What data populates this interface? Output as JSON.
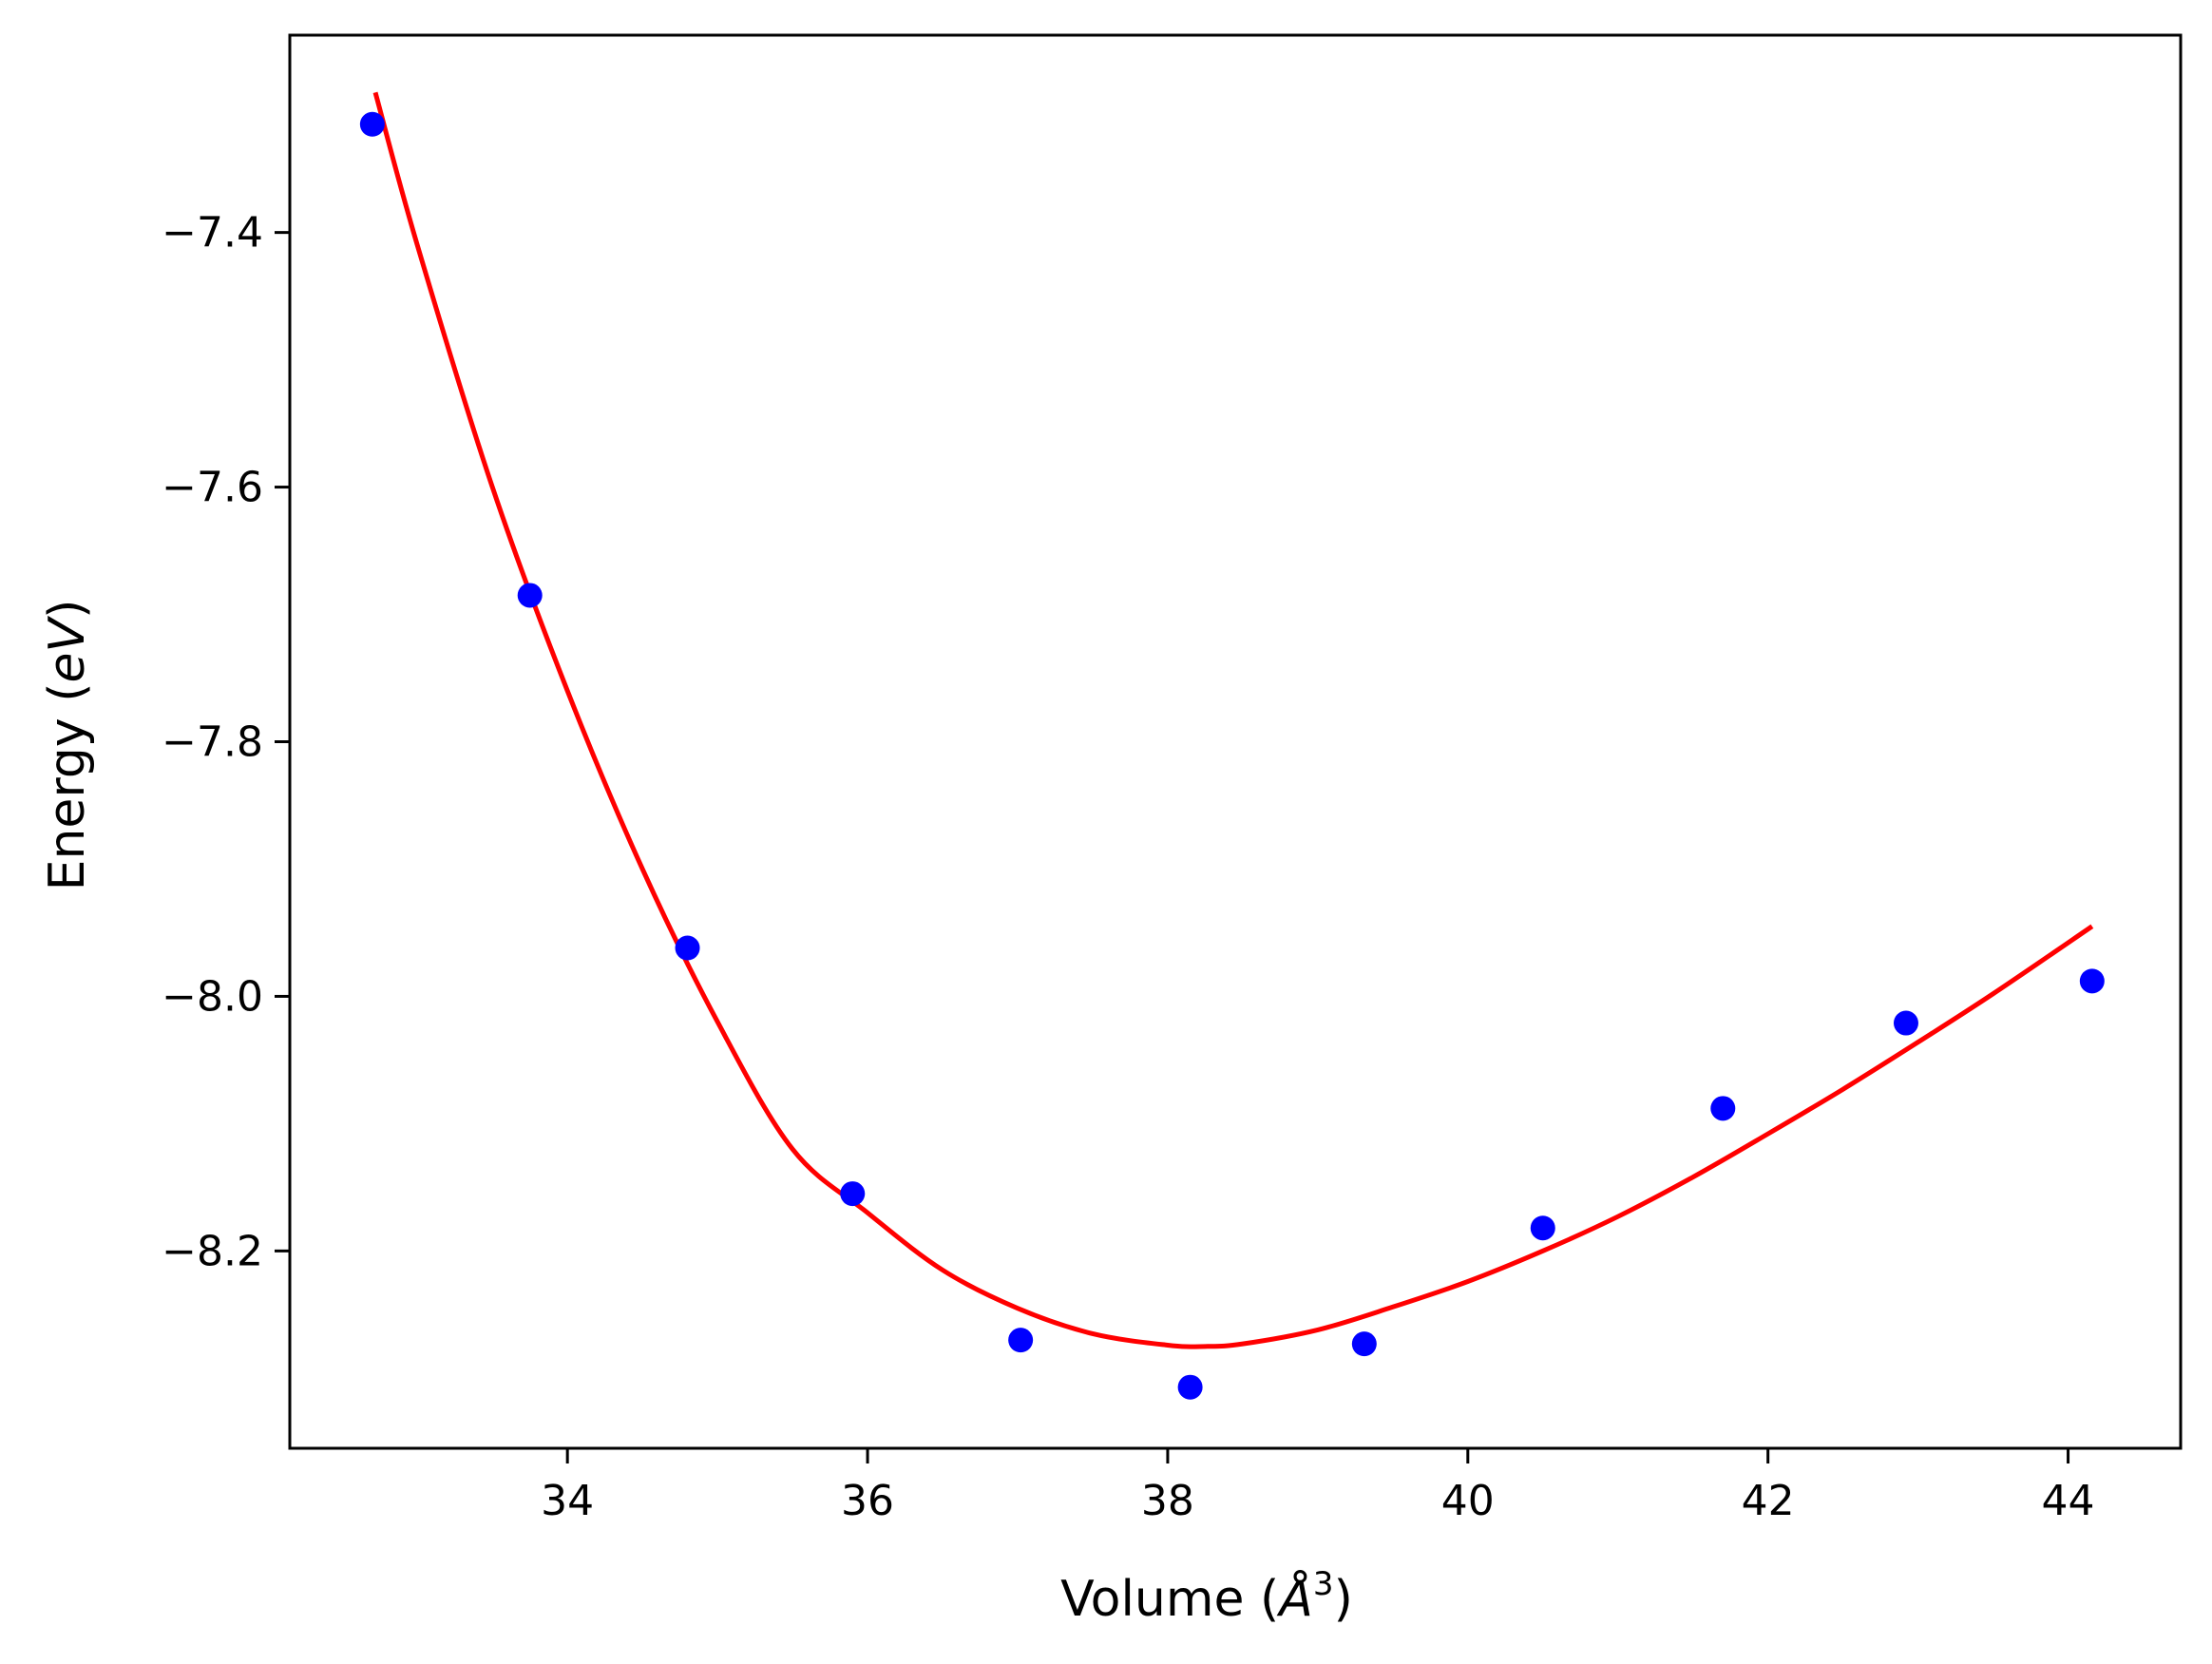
{
  "chart_data": {
    "type": "scatter",
    "title": "",
    "xlabel": {
      "main": "Volume (",
      "symbol": "Å",
      "sup": "3",
      "close": ")"
    },
    "ylabel": {
      "main": "Energy (",
      "italic": "eV",
      "close": ")"
    },
    "xlim": [
      32.15,
      44.75
    ],
    "ylim": [
      -8.355,
      -7.245
    ],
    "x_ticks": [
      34,
      36,
      38,
      40,
      42,
      44
    ],
    "y_ticks": [
      -7.4,
      -7.6,
      -7.8,
      -8.0,
      -8.2
    ],
    "x_tick_labels": [
      "34",
      "36",
      "38",
      "40",
      "42",
      "44"
    ],
    "y_tick_labels": [
      "−7.4",
      "−7.6",
      "−7.8",
      "−8.0",
      "−8.2"
    ],
    "grid": false,
    "series": [
      {
        "kind": "points",
        "color": "#0000ff",
        "x": [
          32.7,
          33.75,
          34.8,
          35.9,
          37.02,
          38.15,
          39.31,
          40.5,
          41.7,
          42.92,
          44.16
        ],
        "y": [
          -7.315,
          -7.685,
          -7.962,
          -8.155,
          -8.27,
          -8.307,
          -8.273,
          -8.182,
          -8.088,
          -8.021,
          -7.988
        ]
      },
      {
        "kind": "fit-curve",
        "color": "#ff0000",
        "x": [
          32.72,
          33.0,
          33.5,
          34.0,
          34.5,
          35.0,
          35.5,
          36.0,
          36.5,
          37.0,
          37.5,
          38.0,
          38.25,
          38.5,
          39.0,
          39.5,
          40.0,
          40.5,
          41.0,
          41.5,
          42.0,
          42.5,
          43.0,
          43.5,
          44.16
        ],
        "y": [
          -7.29,
          -7.41,
          -7.6,
          -7.76,
          -7.9,
          -8.02,
          -8.12,
          -8.17,
          -8.215,
          -8.245,
          -8.265,
          -8.274,
          -8.275,
          -8.273,
          -8.262,
          -8.244,
          -8.224,
          -8.2,
          -8.173,
          -8.142,
          -8.108,
          -8.073,
          -8.036,
          -7.998,
          -7.945
        ]
      }
    ]
  }
}
